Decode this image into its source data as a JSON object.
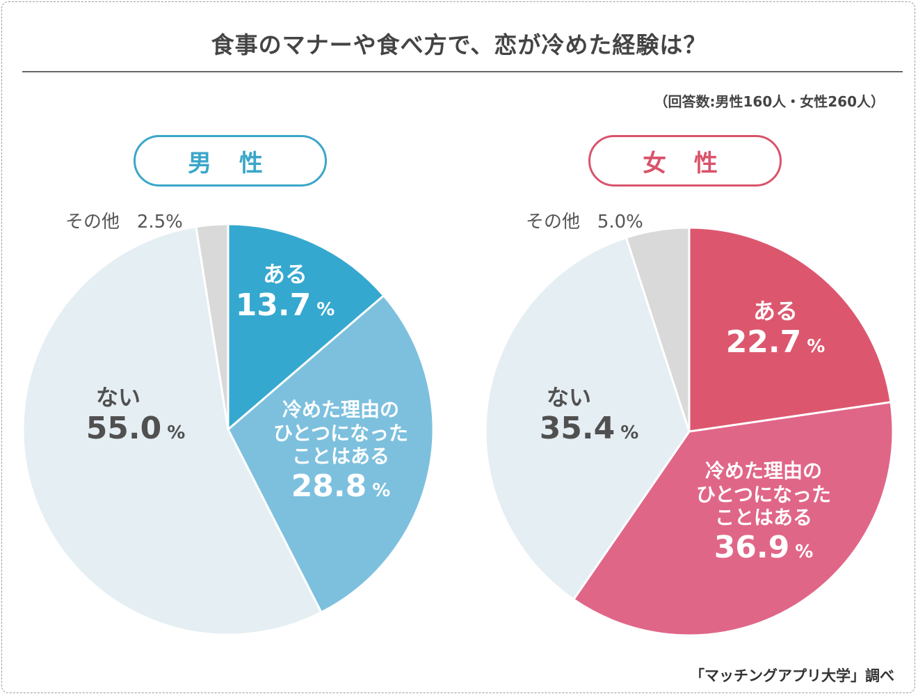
{
  "title": "食事のマナーや食べ方で、恋が冷めた経験は？",
  "respondents_note": "（回答数:男性160人・女性260人）",
  "source": "「マッチングアプリ大学」調べ",
  "unit": "%",
  "chart_data": [
    {
      "type": "pie",
      "title": "男 性",
      "accent": "#3aa6c8",
      "slices": [
        {
          "label": "ある",
          "value": 13.7,
          "color": "#35a8cf"
        },
        {
          "label": "冷めた理由のひとつになったことはある",
          "label_lines": [
            "冷めた理由の",
            "ひとつになった",
            "ことはある"
          ],
          "value": 28.8,
          "color": "#7dc0de"
        },
        {
          "label": "ない",
          "value": 55.0,
          "color": "#e5eef3"
        },
        {
          "label": "その他",
          "value": 2.5,
          "color": "#d9d9d9"
        }
      ]
    },
    {
      "type": "pie",
      "title": "女 性",
      "accent": "#d9536b",
      "slices": [
        {
          "label": "ある",
          "value": 22.7,
          "color": "#dc576e"
        },
        {
          "label": "冷めた理由のひとつになったことはある",
          "label_lines": [
            "冷めた理由の",
            "ひとつになった",
            "ことはある"
          ],
          "value": 36.9,
          "color": "#e06688"
        },
        {
          "label": "ない",
          "value": 35.4,
          "color": "#e5eef3"
        },
        {
          "label": "その他",
          "value": 5.0,
          "color": "#d9d9d9"
        }
      ]
    }
  ]
}
